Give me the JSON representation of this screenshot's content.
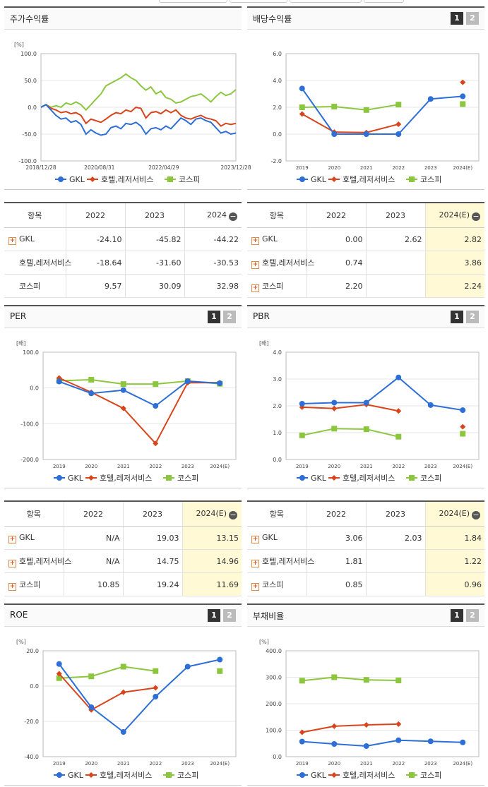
{
  "top_buttons": [
    "",
    "",
    "",
    ""
  ],
  "legend": [
    {
      "name": "GKL",
      "color": "#2d6fd6",
      "marker": "circle"
    },
    {
      "name": "호텔,레저서비스",
      "color": "#d8451c",
      "marker": "diamond"
    },
    {
      "name": "코스피",
      "color": "#8cc63f",
      "marker": "square"
    }
  ],
  "panels": {
    "stock": {
      "title": "주가수익률"
    },
    "dividend": {
      "title": "배당수익률",
      "btn1": "1",
      "btn2": "2"
    },
    "per": {
      "title": "PER",
      "btn1": "1",
      "btn2": "2"
    },
    "pbr": {
      "title": "PBR",
      "btn1": "1",
      "btn2": "2"
    },
    "roe": {
      "title": "ROE",
      "btn1": "1",
      "btn2": "2"
    },
    "debt": {
      "title": "부채비율",
      "btn1": "1",
      "btn2": "2"
    }
  },
  "tables": {
    "stock": {
      "header": [
        "항목",
        "2022",
        "2023",
        "2024"
      ],
      "rows": [
        {
          "label": "GKL",
          "plus": true,
          "values": [
            "-24.10",
            "-45.82",
            "-44.22"
          ]
        },
        {
          "label": "호텔,레저서비스",
          "plus": false,
          "values": [
            "-18.64",
            "-31.60",
            "-30.53"
          ]
        },
        {
          "label": "코스피",
          "plus": false,
          "values": [
            "9.57",
            "30.09",
            "32.98"
          ]
        }
      ]
    },
    "dividend": {
      "header": [
        "항목",
        "2022",
        "2023",
        "2024(E)"
      ],
      "rows": [
        {
          "label": "GKL",
          "plus": true,
          "values": [
            "0.00",
            "2.62",
            "2.82"
          ]
        },
        {
          "label": "호텔,레저서비스",
          "plus": true,
          "values": [
            "0.74",
            "",
            "3.86"
          ]
        },
        {
          "label": "코스피",
          "plus": true,
          "values": [
            "2.20",
            "",
            "2.24"
          ]
        }
      ]
    },
    "per": {
      "header": [
        "항목",
        "2022",
        "2023",
        "2024(E)"
      ],
      "rows": [
        {
          "label": "GKL",
          "plus": true,
          "values": [
            "N/A",
            "19.03",
            "13.15"
          ]
        },
        {
          "label": "호텔,레저서비스",
          "plus": true,
          "values": [
            "N/A",
            "14.75",
            "14.96"
          ]
        },
        {
          "label": "코스피",
          "plus": true,
          "values": [
            "10.85",
            "19.24",
            "11.69"
          ]
        }
      ]
    },
    "pbr": {
      "header": [
        "항목",
        "2022",
        "2023",
        "2024(E)"
      ],
      "rows": [
        {
          "label": "GKL",
          "plus": true,
          "values": [
            "3.06",
            "2.03",
            "1.84"
          ]
        },
        {
          "label": "호텔,레저서비스",
          "plus": true,
          "values": [
            "1.81",
            "",
            "1.22"
          ]
        },
        {
          "label": "코스피",
          "plus": true,
          "values": [
            "0.85",
            "",
            "0.96"
          ]
        }
      ]
    }
  },
  "chart_data": [
    {
      "id": "stock",
      "type": "line",
      "unit": "[%]",
      "xlabels": [
        "2018/12/28",
        "2020/08/31",
        "2022/04/29",
        "2023/12/28"
      ],
      "ylim": [
        -100,
        100
      ],
      "yticks": [
        "100.0",
        "50.0",
        "0.0",
        "-50.0",
        "-100.0"
      ],
      "series": [
        {
          "name": "GKL",
          "values": [
            0,
            5,
            -5,
            -15,
            -22,
            -20,
            -28,
            -25,
            -32,
            -50,
            -42,
            -48,
            -52,
            -50,
            -38,
            -35,
            -40,
            -30,
            -32,
            -28,
            -35,
            -50,
            -40,
            -38,
            -42,
            -35,
            -40,
            -30,
            -20,
            -25,
            -32,
            -22,
            -20,
            -25,
            -28,
            -38,
            -48,
            -45,
            -50,
            -48
          ]
        },
        {
          "name": "호텔,레저서비스",
          "values": [
            0,
            5,
            -2,
            -5,
            -10,
            -8,
            -12,
            -10,
            -15,
            -30,
            -22,
            -25,
            -28,
            -22,
            -15,
            -10,
            -12,
            -5,
            -8,
            0,
            -2,
            -20,
            -10,
            -8,
            -12,
            -5,
            -10,
            -5,
            -15,
            -20,
            -22,
            -18,
            -15,
            -20,
            -22,
            -25,
            -35,
            -30,
            -32,
            -30
          ]
        },
        {
          "name": "코스피",
          "values": [
            0,
            5,
            0,
            3,
            0,
            8,
            5,
            10,
            5,
            -5,
            5,
            15,
            25,
            40,
            45,
            50,
            55,
            62,
            55,
            50,
            40,
            32,
            38,
            25,
            30,
            18,
            15,
            8,
            10,
            15,
            20,
            22,
            25,
            18,
            10,
            20,
            28,
            22,
            25,
            33
          ]
        }
      ]
    },
    {
      "id": "dividend",
      "type": "line",
      "unit": "",
      "ylim": [
        -2,
        6
      ],
      "yticks": [
        "6.0",
        "4.0",
        "2.0",
        "0.0",
        "-2.0"
      ],
      "categories": [
        "2019",
        "2020",
        "2021",
        "2022",
        "2023",
        "2024(E)"
      ],
      "series": [
        {
          "name": "GKL",
          "values": [
            3.4,
            0.0,
            0.0,
            0.0,
            2.62,
            2.82
          ]
        },
        {
          "name": "호텔,레저서비스",
          "values": [
            1.5,
            0.15,
            0.12,
            0.74,
            null,
            3.86
          ]
        },
        {
          "name": "코스피",
          "values": [
            2.0,
            2.05,
            1.8,
            2.2,
            null,
            2.24
          ]
        }
      ]
    },
    {
      "id": "per",
      "type": "line",
      "unit": "[배]",
      "ylim": [
        -200,
        100
      ],
      "yticks": [
        "100.0",
        "0.0",
        "-100.0",
        "-200.0"
      ],
      "categories": [
        "2019",
        "2020",
        "2021",
        "2022",
        "2023",
        "2024(E)"
      ],
      "series": [
        {
          "name": "GKL",
          "values": [
            18,
            -15,
            -6,
            -50,
            19.03,
            13.15
          ]
        },
        {
          "name": "호텔,레저서비스",
          "values": [
            28,
            -12,
            -57,
            -155,
            14.75,
            14.96
          ]
        },
        {
          "name": "코스피",
          "values": [
            20,
            23,
            11,
            10.85,
            19.24,
            11.69
          ]
        }
      ]
    },
    {
      "id": "pbr",
      "type": "line",
      "unit": "[배]",
      "ylim": [
        0,
        4
      ],
      "yticks": [
        "4.0",
        "3.0",
        "2.0",
        "1.0",
        "0.0"
      ],
      "categories": [
        "2019",
        "2020",
        "2021",
        "2022",
        "2023",
        "2024(E)"
      ],
      "series": [
        {
          "name": "GKL",
          "values": [
            2.08,
            2.12,
            2.12,
            3.06,
            2.03,
            1.84
          ]
        },
        {
          "name": "호텔,레저서비스",
          "values": [
            1.95,
            1.9,
            2.05,
            1.81,
            null,
            1.22
          ]
        },
        {
          "name": "코스피",
          "values": [
            0.9,
            1.15,
            1.13,
            0.85,
            null,
            0.96
          ]
        }
      ]
    },
    {
      "id": "roe",
      "type": "line",
      "unit": "[%]",
      "ylim": [
        -40,
        20
      ],
      "yticks": [
        "20.0",
        "0.0",
        "-20.0",
        "-40.0"
      ],
      "categories": [
        "2019",
        "2020",
        "2021",
        "2022",
        "2023",
        "2024(E)"
      ],
      "series": [
        {
          "name": "GKL",
          "values": [
            12.5,
            -12,
            -26,
            -6,
            11,
            15
          ]
        },
        {
          "name": "호텔,레저서비스",
          "values": [
            7,
            -13.5,
            -3.5,
            -1,
            null,
            null
          ]
        },
        {
          "name": "코스피",
          "values": [
            4.5,
            5.5,
            11,
            8.5,
            null,
            8.5
          ]
        }
      ]
    },
    {
      "id": "debt",
      "type": "line",
      "unit": "[%]",
      "ylim": [
        0,
        400
      ],
      "yticks": [
        "400.0",
        "300.0",
        "200.0",
        "100.0",
        "0.0"
      ],
      "categories": [
        "2019",
        "2020",
        "2021",
        "2022",
        "2023",
        "2024(E)"
      ],
      "series": [
        {
          "name": "GKL",
          "values": [
            57,
            48,
            40,
            62,
            58,
            54
          ]
        },
        {
          "name": "호텔,레저서비스",
          "values": [
            92,
            115,
            120,
            123,
            null,
            null
          ]
        },
        {
          "name": "코스피",
          "values": [
            287,
            300,
            290,
            288,
            null,
            null
          ]
        }
      ]
    }
  ]
}
